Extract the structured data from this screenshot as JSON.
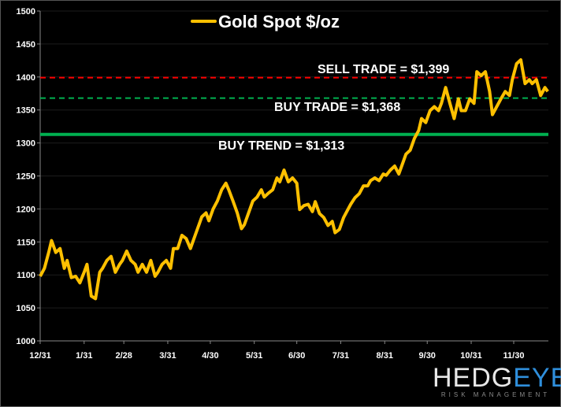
{
  "chart_data": {
    "type": "line",
    "title": "Gold Spot $/oz",
    "xlabel": "",
    "ylabel": "",
    "ylim": [
      1000,
      1500
    ],
    "yticks": [
      1000,
      1050,
      1100,
      1150,
      1200,
      1250,
      1300,
      1350,
      1400,
      1450,
      1500
    ],
    "xticks": [
      "12/31",
      "1/31",
      "2/28",
      "3/31",
      "4/30",
      "5/31",
      "6/30",
      "7/31",
      "8/31",
      "9/30",
      "10/31",
      "11/30"
    ],
    "grid": true,
    "legend": "top-center",
    "series": [
      {
        "name": "Gold Spot $/oz",
        "color": "#ffc000",
        "x": [
          "12/31",
          "1/3",
          "1/6",
          "1/8",
          "1/11",
          "1/14",
          "1/17",
          "1/19",
          "1/22",
          "1/25",
          "1/28",
          "1/31",
          "2/2",
          "2/5",
          "2/8",
          "2/11",
          "2/13",
          "2/16",
          "2/19",
          "2/22",
          "2/25",
          "2/27",
          "3/2",
          "3/5",
          "3/8",
          "3/10",
          "3/13",
          "3/16",
          "3/19",
          "3/22",
          "3/24",
          "3/27",
          "3/30",
          "4/2",
          "4/4",
          "4/7",
          "4/10",
          "4/13",
          "4/16",
          "4/18",
          "4/21",
          "4/24",
          "4/27",
          "4/29",
          "5/2",
          "5/5",
          "5/8",
          "5/11",
          "5/13",
          "5/16",
          "5/19",
          "5/22",
          "5/24",
          "5/27",
          "5/30",
          "6/2",
          "6/5",
          "6/7",
          "6/10",
          "6/13",
          "6/16",
          "6/18",
          "6/21",
          "6/24",
          "6/27",
          "6/30",
          "7/2",
          "7/5",
          "7/8",
          "7/11",
          "7/13",
          "7/16",
          "7/19",
          "7/22",
          "7/25",
          "7/27",
          "7/30",
          "8/2",
          "8/5",
          "8/7",
          "8/10",
          "8/13",
          "8/16",
          "8/19",
          "8/21",
          "8/24",
          "8/27",
          "8/30",
          "9/1",
          "9/4",
          "9/7",
          "9/10",
          "9/13",
          "9/15",
          "9/18",
          "9/21",
          "9/24",
          "9/26",
          "9/29",
          "10/2",
          "10/5",
          "10/8",
          "10/10",
          "10/13",
          "10/16",
          "10/19",
          "10/22",
          "10/24",
          "10/27",
          "10/30",
          "11/2",
          "11/4",
          "11/7",
          "11/10",
          "11/13",
          "11/15",
          "11/18",
          "11/21",
          "11/24",
          "11/27",
          "11/29",
          "12/2",
          "12/5",
          "12/8",
          "12/11",
          "12/13",
          "12/16",
          "12/19",
          "12/22",
          "12/24"
        ],
        "values": [
          1098,
          1110,
          1134,
          1152,
          1134,
          1140,
          1110,
          1122,
          1096,
          1098,
          1088,
          1104,
          1116,
          1068,
          1064,
          1104,
          1110,
          1122,
          1128,
          1104,
          1116,
          1122,
          1136,
          1122,
          1116,
          1104,
          1116,
          1104,
          1122,
          1098,
          1104,
          1116,
          1122,
          1110,
          1140,
          1140,
          1160,
          1155,
          1140,
          1152,
          1170,
          1188,
          1194,
          1182,
          1200,
          1212,
          1229,
          1239,
          1229,
          1212,
          1194,
          1170,
          1176,
          1194,
          1212,
          1218,
          1229,
          1218,
          1224,
          1229,
          1247,
          1241,
          1259,
          1241,
          1247,
          1239,
          1199,
          1205,
          1207,
          1196,
          1211,
          1193,
          1187,
          1175,
          1181,
          1164,
          1169,
          1187,
          1199,
          1207,
          1217,
          1223,
          1235,
          1235,
          1243,
          1247,
          1243,
          1253,
          1251,
          1259,
          1265,
          1253,
          1271,
          1283,
          1289,
          1307,
          1319,
          1337,
          1331,
          1349,
          1355,
          1349,
          1360,
          1384,
          1360,
          1337,
          1367,
          1349,
          1349,
          1367,
          1360,
          1408,
          1402,
          1408,
          1378,
          1343,
          1355,
          1367,
          1378,
          1372,
          1396,
          1420,
          1426,
          1390,
          1396,
          1390,
          1396,
          1372,
          1384,
          1378
        ]
      }
    ],
    "reference_lines": [
      {
        "label": "SELL TRADE = $1,399",
        "value": 1399,
        "color": "#ff0000",
        "style": "dashed"
      },
      {
        "label": "BUY TRADE = $1,368",
        "value": 1368,
        "color": "#00b050",
        "style": "dashed"
      },
      {
        "label": "BUY TREND = $1,313",
        "value": 1313,
        "color": "#00b050",
        "style": "solid"
      }
    ]
  },
  "logo": {
    "word1": "HEDG",
    "word2": "EYE",
    "tagline": "RISK MANAGEMENT"
  }
}
